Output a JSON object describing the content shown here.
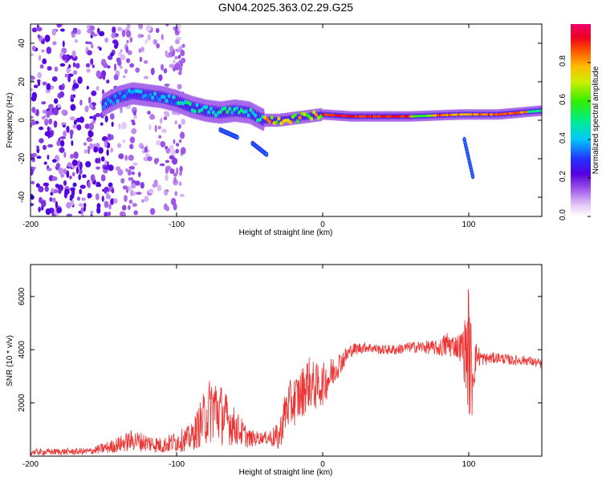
{
  "chart_data": [
    {
      "type": "heatmap",
      "title": "GN04.2025.363.02.29.G25",
      "xlabel": "Height of straight line (km)",
      "ylabel": "Frequency (Hz)",
      "xlim": [
        -200,
        150
      ],
      "ylim": [
        -50,
        50
      ],
      "xticks": [
        "-200",
        "-100",
        "0",
        "100"
      ],
      "yticks": [
        "40",
        "20",
        "0",
        "-20",
        "-40"
      ],
      "colorbar": {
        "label": "Normalized spectral amplitude",
        "ticks": [
          "0.0",
          "0.2",
          "0.4",
          "0.6",
          "0.8"
        ],
        "range": [
          0,
          1
        ]
      },
      "ridge": [
        {
          "x": -150,
          "f": 8
        },
        {
          "x": -140,
          "f": 12
        },
        {
          "x": -130,
          "f": 14
        },
        {
          "x": -120,
          "f": 13
        },
        {
          "x": -110,
          "f": 12
        },
        {
          "x": -100,
          "f": 10
        },
        {
          "x": -90,
          "f": 7
        },
        {
          "x": -80,
          "f": 5
        },
        {
          "x": -70,
          "f": 4
        },
        {
          "x": -60,
          "f": 5
        },
        {
          "x": -50,
          "f": 4
        },
        {
          "x": -40,
          "f": 0
        },
        {
          "x": -30,
          "f": 0
        },
        {
          "x": -20,
          "f": 1
        },
        {
          "x": -10,
          "f": 2
        },
        {
          "x": 0,
          "f": 3
        },
        {
          "x": 20,
          "f": 2
        },
        {
          "x": 60,
          "f": 2
        },
        {
          "x": 95,
          "f": 3
        },
        {
          "x": 120,
          "f": 3
        },
        {
          "x": 150,
          "f": 5
        }
      ],
      "secondary_branches": [
        [
          {
            "x": -70,
            "f": -5
          },
          {
            "x": -58,
            "f": -9
          }
        ],
        [
          {
            "x": -48,
            "f": -12
          },
          {
            "x": -38,
            "f": -18
          }
        ],
        [
          {
            "x": 97,
            "f": -10
          },
          {
            "x": 103,
            "f": -30
          }
        ]
      ]
    },
    {
      "type": "line",
      "xlabel": "Height of straight line (km)",
      "ylabel": "SNR (10 * v/v)",
      "xlim": [
        -200,
        150
      ],
      "ylim": [
        0,
        7200
      ],
      "xticks": [
        "-200",
        "-100",
        "0",
        "100"
      ],
      "yticks": [
        "6000",
        "4000",
        "2000"
      ],
      "series": [
        {
          "name": "SNR",
          "color": "#ee3333",
          "x": [
            -200,
            -160,
            -145,
            -130,
            -110,
            -90,
            -80,
            -75,
            -70,
            -60,
            -50,
            -40,
            -30,
            -25,
            -15,
            -10,
            -5,
            0,
            5,
            10,
            20,
            30,
            40,
            50,
            60,
            70,
            80,
            85,
            90,
            95,
            98,
            100,
            102,
            105,
            110,
            120,
            130,
            140,
            150
          ],
          "values": [
            150,
            180,
            350,
            600,
            400,
            700,
            1500,
            1900,
            1600,
            1100,
            650,
            700,
            700,
            1800,
            2300,
            2800,
            2600,
            2700,
            3000,
            3400,
            4000,
            4100,
            4000,
            4000,
            4100,
            4100,
            4050,
            4200,
            4150,
            4100,
            3900,
            4000,
            3000,
            3800,
            3650,
            3700,
            3600,
            3600,
            3450
          ],
          "noise": [
            120,
            130,
            250,
            400,
            300,
            500,
            1100,
            1400,
            1200,
            700,
            350,
            200,
            550,
            900,
            1000,
            1000,
            900,
            800,
            700,
            500,
            250,
            200,
            180,
            200,
            200,
            250,
            300,
            550,
            400,
            600,
            1500,
            2600,
            1800,
            500,
            250,
            200,
            200,
            180,
            180
          ]
        }
      ]
    }
  ]
}
